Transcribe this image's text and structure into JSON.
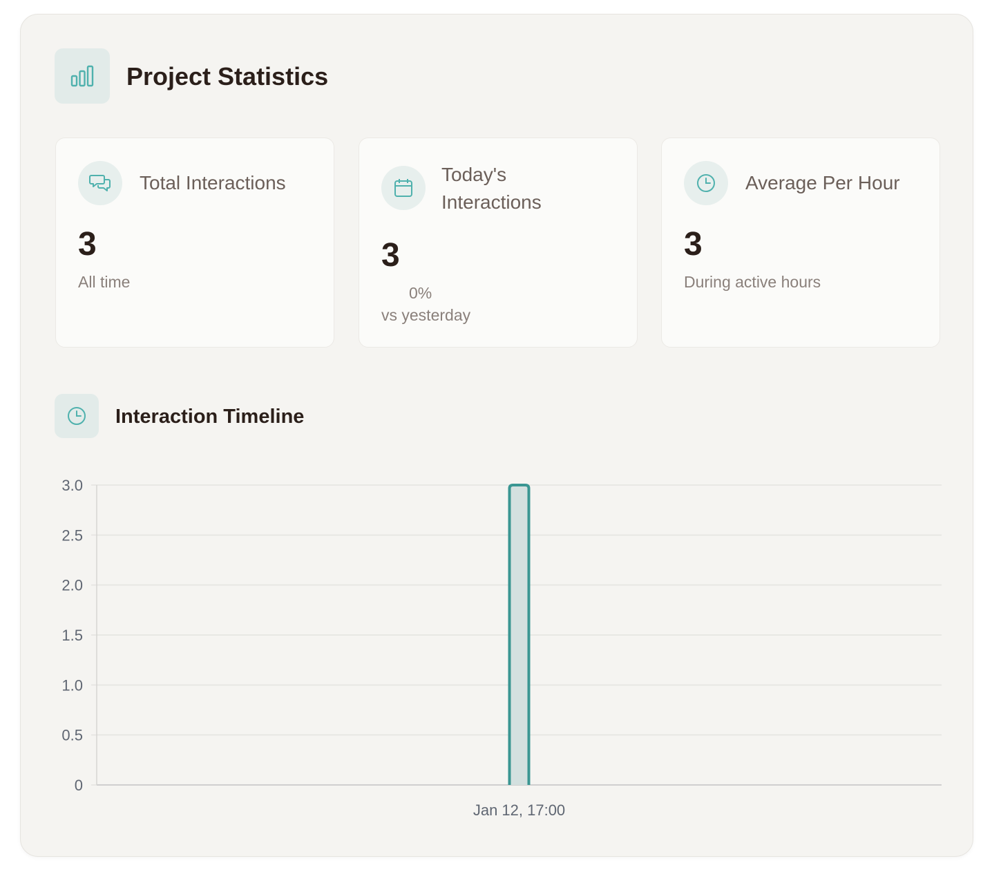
{
  "header": {
    "title": "Project Statistics",
    "icon": "bar-chart-icon"
  },
  "cards": [
    {
      "icon": "chat-bubbles-icon",
      "title": "Total Interactions",
      "value": "3",
      "subtitle": "All time"
    },
    {
      "icon": "calendar-icon",
      "title_line1": "Today's",
      "title_line2": "Interactions",
      "value": "3",
      "change": "0%",
      "subtitle": "vs yesterday"
    },
    {
      "icon": "clock-icon",
      "title": "Average Per Hour",
      "value": "3",
      "subtitle": "During active hours"
    }
  ],
  "timeline": {
    "title": "Interaction Timeline",
    "icon": "clock-icon"
  },
  "colors": {
    "accent": "#3a9692",
    "bar_fill": "#d3e0df",
    "icon_bg": "#e2ebe9",
    "panel_bg": "#f5f4f1"
  },
  "chart_data": {
    "type": "bar",
    "categories": [
      "Jan 12, 17:00"
    ],
    "series": [
      {
        "values": [
          3
        ]
      }
    ],
    "ylim": [
      0,
      3
    ],
    "yticks": [
      "0",
      "0.5",
      "1.0",
      "1.5",
      "2.0",
      "2.5",
      "3.0"
    ],
    "grid": true
  }
}
